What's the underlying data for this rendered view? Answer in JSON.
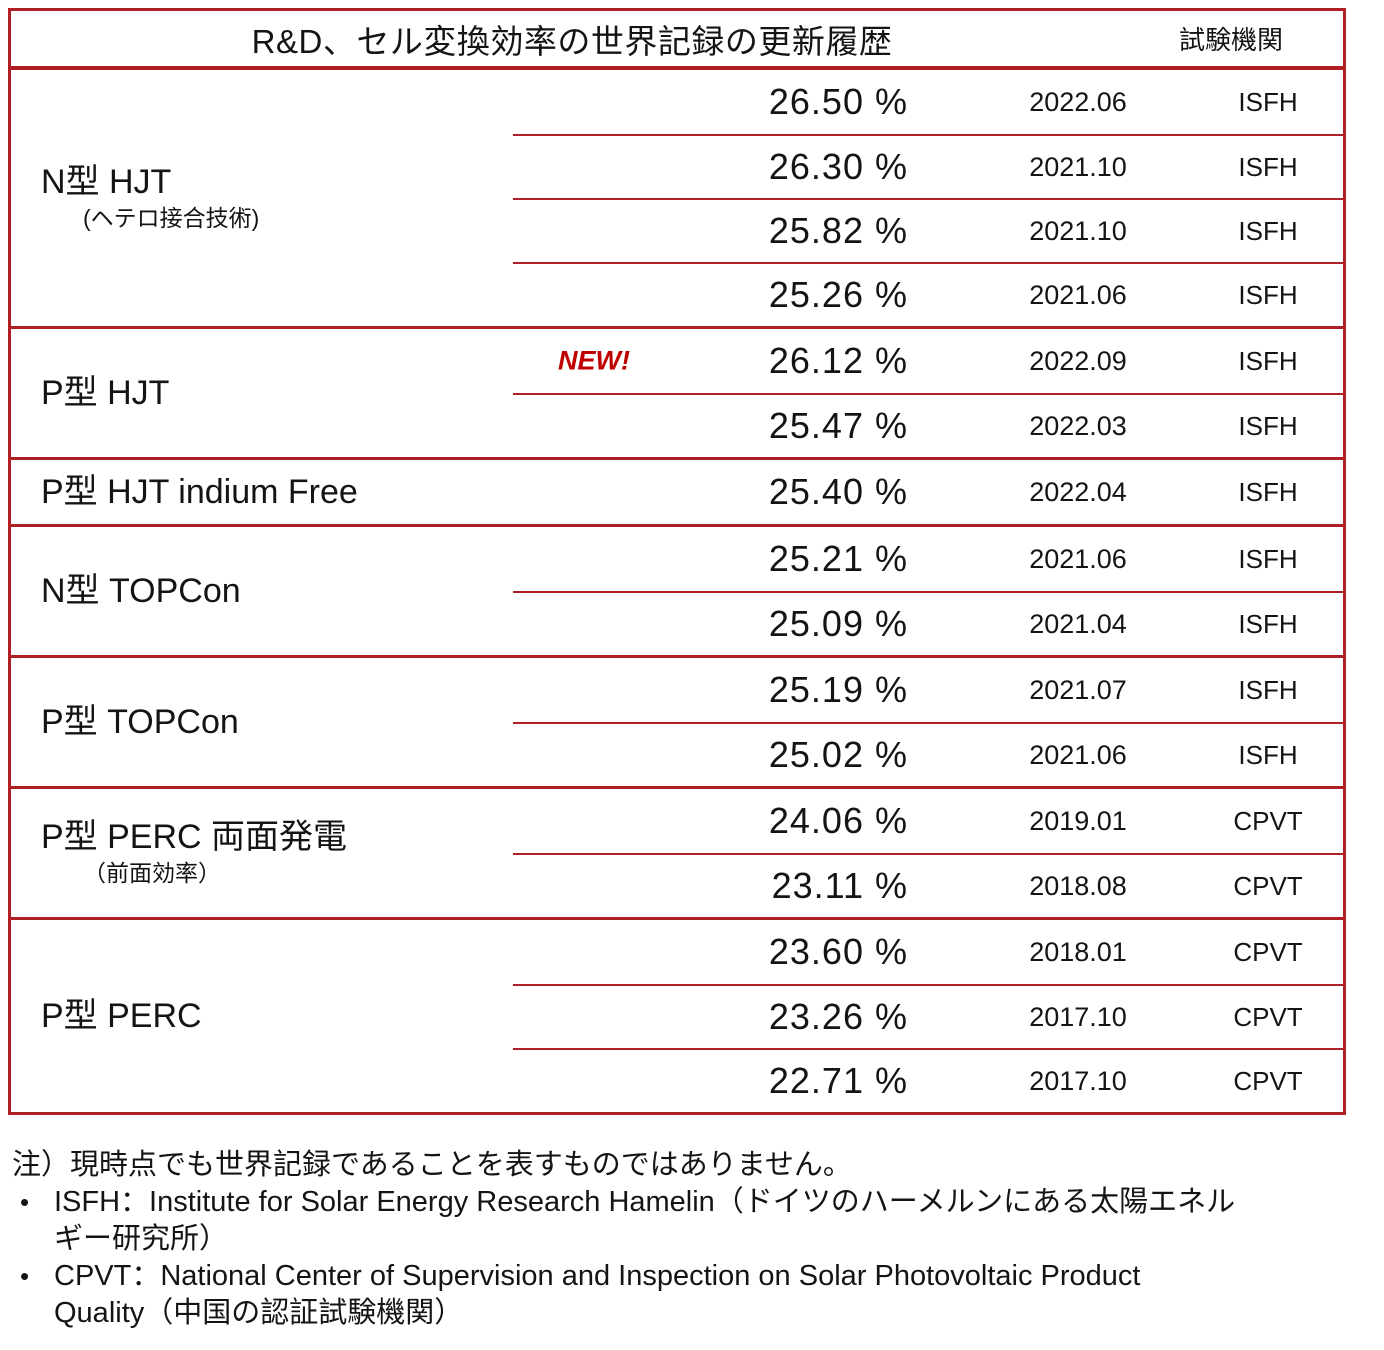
{
  "table": {
    "title": "R&D、セル変換効率の世界記録の更新履歴",
    "agency_header": "試験機関",
    "groups": [
      {
        "label": "N型 HJT",
        "sublabel": "(ヘテロ接合技術)",
        "rows": [
          {
            "pct": "26.50 %",
            "date": "2022.06",
            "agency": "ISFH"
          },
          {
            "pct": "26.30 %",
            "date": "2021.10",
            "agency": "ISFH"
          },
          {
            "pct": "25.82 %",
            "date": "2021.10",
            "agency": "ISFH"
          },
          {
            "pct": "25.26 %",
            "date": "2021.06",
            "agency": "ISFH"
          }
        ]
      },
      {
        "label": "P型 HJT",
        "rows": [
          {
            "badge": "NEW!",
            "pct": "26.12 %",
            "date": "2022.09",
            "agency": "ISFH"
          },
          {
            "pct": "25.47 %",
            "date": "2022.03",
            "agency": "ISFH"
          }
        ]
      },
      {
        "label": "P型 HJT indium Free",
        "rows": [
          {
            "pct": "25.40 %",
            "date": "2022.04",
            "agency": "ISFH"
          }
        ]
      },
      {
        "label": "N型 TOPCon",
        "rows": [
          {
            "pct": "25.21 %",
            "date": "2021.06",
            "agency": "ISFH"
          },
          {
            "pct": "25.09 %",
            "date": "2021.04",
            "agency": "ISFH"
          }
        ]
      },
      {
        "label": "P型 TOPCon",
        "rows": [
          {
            "pct": "25.19 %",
            "date": "2021.07",
            "agency": "ISFH"
          },
          {
            "pct": "25.02 %",
            "date": "2021.06",
            "agency": "ISFH"
          }
        ]
      },
      {
        "label": "P型 PERC 両面発電",
        "sublabel": "（前面効率）",
        "rows": [
          {
            "pct": "24.06 %",
            "date": "2019.01",
            "agency": "CPVT"
          },
          {
            "pct": "23.11 %",
            "date": "2018.08",
            "agency": "CPVT"
          }
        ]
      },
      {
        "label": "P型 PERC",
        "rows": [
          {
            "pct": "23.60 %",
            "date": "2018.01",
            "agency": "CPVT"
          },
          {
            "pct": "23.26 %",
            "date": "2017.10",
            "agency": "CPVT"
          },
          {
            "pct": "22.71 %",
            "date": "2017.10",
            "agency": "CPVT"
          }
        ]
      }
    ]
  },
  "notes": {
    "bullet_char": "•",
    "note": "注）現時点でも世界記録であることを表すものではありません。",
    "bullets": [
      {
        "lines": [
          "ISFH：Institute for Solar Energy Research Hamelin（ドイツのハーメルンにある太陽エネル",
          "ギー研究所）"
        ]
      },
      {
        "lines": [
          "CPVT：National Center of Supervision and Inspection on Solar Photovoltaic Product",
          "Quality（中国の認証試験機関）"
        ]
      }
    ]
  },
  "colors": {
    "line_red": "#b01f24",
    "new_red": "#c00000"
  }
}
